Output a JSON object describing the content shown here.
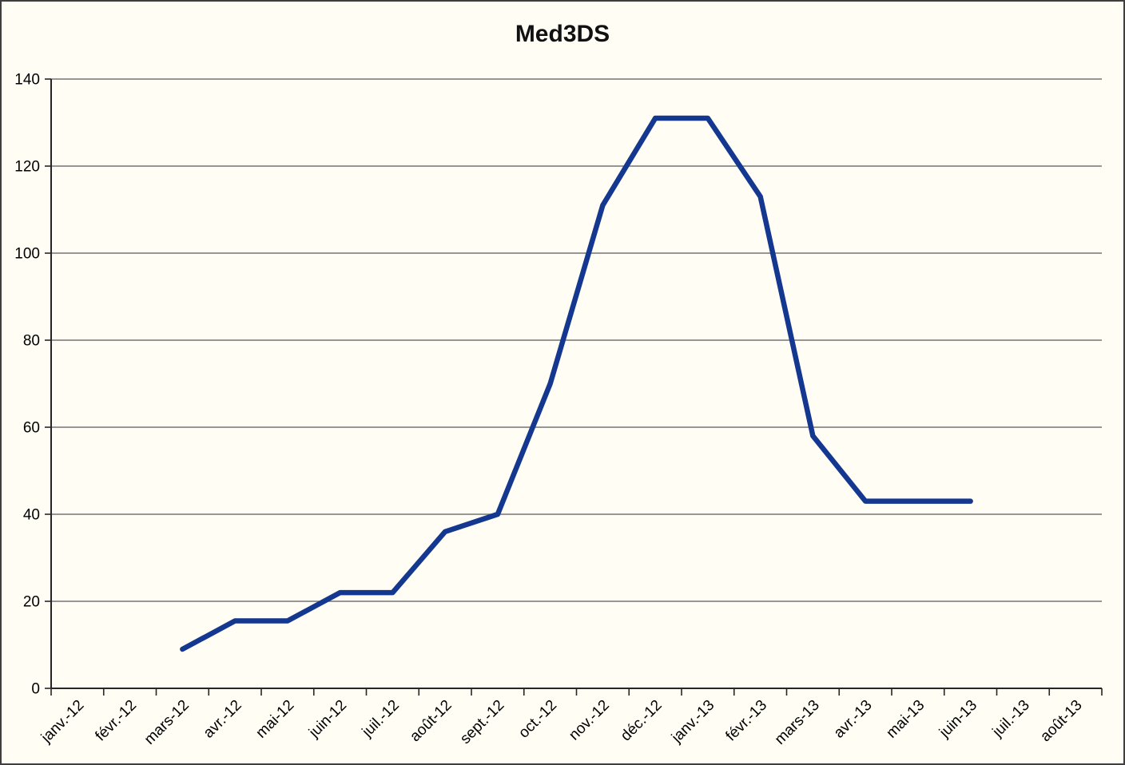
{
  "title": "Med3DS",
  "chart_data": {
    "type": "line",
    "title": "Med3DS",
    "categories": [
      "janv.-12",
      "févr.-12",
      "mars-12",
      "avr.-12",
      "mai-12",
      "juin-12",
      "juil.-12",
      "août-12",
      "sept.-12",
      "oct.-12",
      "nov.-12",
      "déc.-12",
      "janv.-13",
      "févr.-13",
      "mars-13",
      "avr.-13",
      "mai-13",
      "juin-13",
      "juil.-13",
      "août-13"
    ],
    "series": [
      {
        "name": "Med3DS",
        "values": [
          null,
          null,
          9,
          15.5,
          15.5,
          22,
          22,
          36,
          40,
          70,
          111,
          131,
          131,
          113,
          58,
          43,
          43,
          43,
          null,
          null
        ]
      }
    ],
    "ylabel": "",
    "xlabel": "",
    "ylim": [
      0,
      140
    ],
    "ytick_step": 20,
    "yticks": [
      0,
      20,
      40,
      60,
      80,
      100,
      120,
      140
    ],
    "grid": "horizontal",
    "legend": "none",
    "x_label_rotation_deg": -45,
    "colors": {
      "line": "#143890",
      "background": "#fffdf4",
      "gridline": "#757575",
      "axis": "#262626",
      "labels": "#000000",
      "frame_border": "#3f3f3f"
    },
    "line_width": 6.5
  }
}
